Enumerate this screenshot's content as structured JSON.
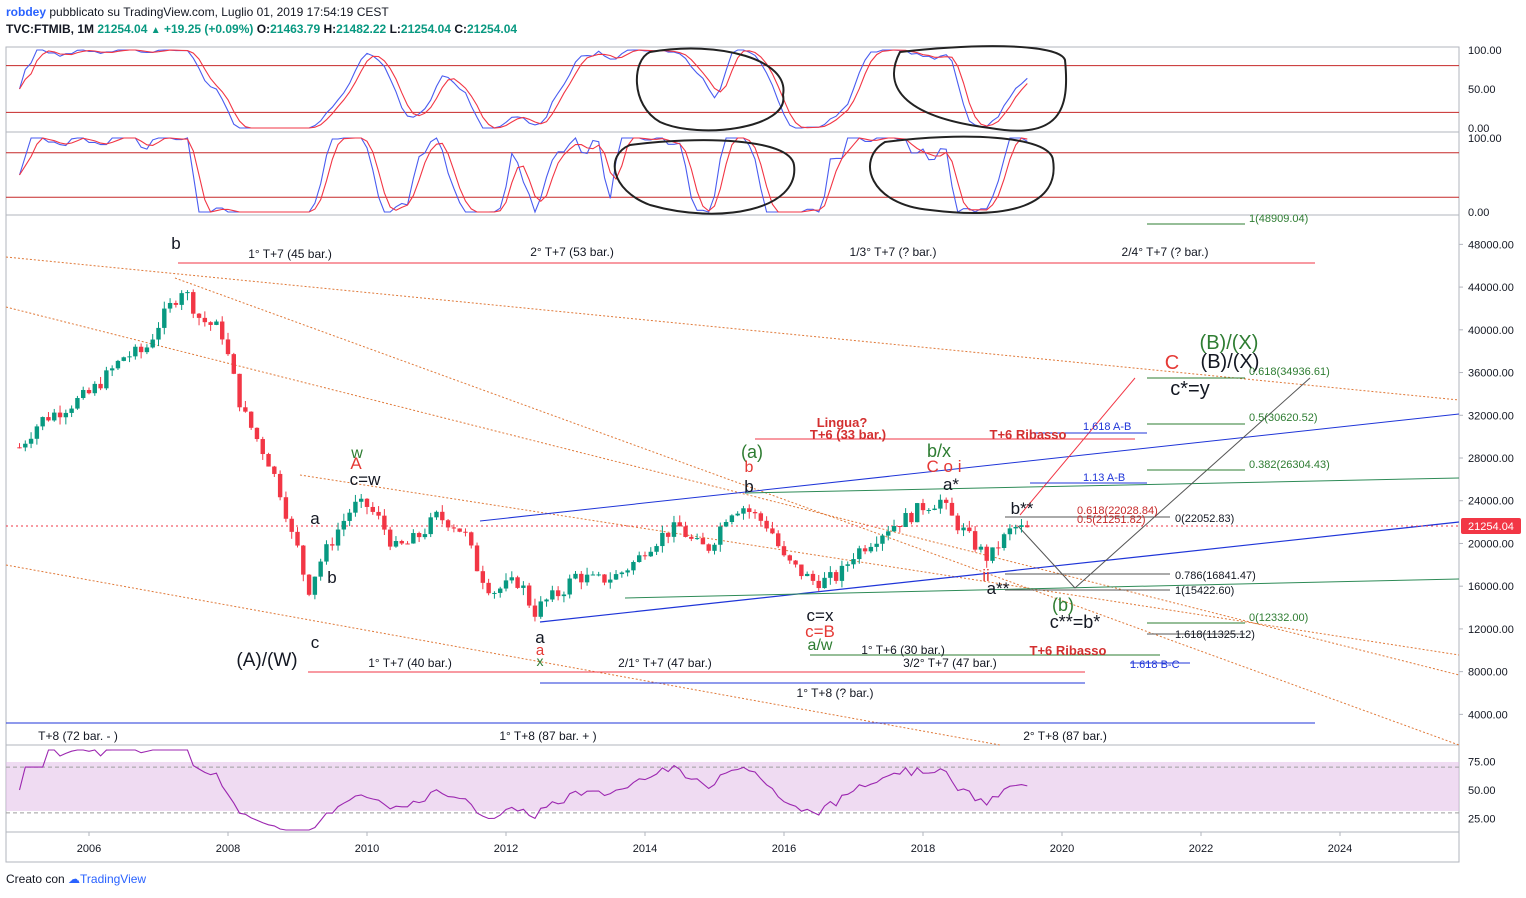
{
  "header": {
    "author": "robdey",
    "published_text": "pubblicato su TradingView.com, Luglio 01, 2019 17:54:19 CEST",
    "symbol": "TVC:FTMIB, 1M",
    "last": "21254.04",
    "change": "+19.25 (+0.09%)",
    "o_label": "O:",
    "o_value": "21463.79",
    "h_label": "H:",
    "h_value": "21482.22",
    "l_label": "L:",
    "l_value": "21254.04",
    "c_label": "C:",
    "c_value": "21254.04"
  },
  "footer": {
    "created_with": "Creato con",
    "brand": "TradingView"
  },
  "colors": {
    "up": "#089981",
    "down": "#f23645",
    "blue": "#2962ff",
    "osc_fast": "#4a5cf0",
    "osc_slow": "#f23645",
    "rsi": "#9c27b0",
    "fib_green": "#2e7d32"
  },
  "chart_data": [
    {
      "type": "line",
      "panel": "stochastic-1",
      "y_ticks": [
        "100.00",
        "50.00",
        "0.00"
      ],
      "ylim": [
        0,
        100
      ],
      "levels": [
        80,
        20
      ]
    },
    {
      "type": "line",
      "panel": "stochastic-2",
      "y_ticks": [
        "100.00",
        "0.00"
      ],
      "ylim": [
        0,
        100
      ],
      "levels": [
        80,
        20
      ]
    },
    {
      "type": "candlestick",
      "panel": "price",
      "ylim": [
        1600,
        50000
      ],
      "y_ticks": [
        "48000.00",
        "44000.00",
        "40000.00",
        "36000.00",
        "32000.00",
        "28000.00",
        "24000.00",
        "20000.00",
        "16000.00",
        "12000.00",
        "8000.00",
        "4000.00"
      ],
      "x_ticks": [
        "2006",
        "2008",
        "2010",
        "2012",
        "2014",
        "2016",
        "2018",
        "2020",
        "2022",
        "2024"
      ],
      "last_price": "21254.04",
      "path": [
        [
          2005.0,
          29000
        ],
        [
          2005.3,
          31500
        ],
        [
          2005.6,
          32500
        ],
        [
          2006.0,
          34000
        ],
        [
          2006.3,
          36000
        ],
        [
          2006.5,
          37500
        ],
        [
          2006.8,
          38000
        ],
        [
          2007.0,
          40500
        ],
        [
          2007.2,
          42500
        ],
        [
          2007.35,
          44000
        ],
        [
          2007.6,
          41000
        ],
        [
          2007.9,
          40000
        ],
        [
          2008.0,
          37500
        ],
        [
          2008.2,
          32500
        ],
        [
          2008.4,
          30000
        ],
        [
          2008.6,
          27500
        ],
        [
          2008.8,
          24000
        ],
        [
          2008.9,
          21000
        ],
        [
          2009.0,
          19500
        ],
        [
          2009.15,
          15500
        ],
        [
          2009.3,
          18000
        ],
        [
          2009.6,
          21500
        ],
        [
          2009.8,
          23500
        ],
        [
          2010.0,
          23500
        ],
        [
          2010.2,
          22000
        ],
        [
          2010.4,
          19500
        ],
        [
          2010.6,
          20000
        ],
        [
          2010.8,
          21000
        ],
        [
          2011.0,
          22500
        ],
        [
          2011.2,
          22000
        ],
        [
          2011.4,
          21000
        ],
        [
          2011.6,
          17500
        ],
        [
          2011.8,
          15500
        ],
        [
          2012.0,
          16000
        ],
        [
          2012.2,
          16500
        ],
        [
          2012.4,
          13500
        ],
        [
          2012.55,
          14500
        ],
        [
          2012.8,
          15500
        ],
        [
          2013.0,
          17000
        ],
        [
          2013.3,
          16500
        ],
        [
          2013.6,
          17000
        ],
        [
          2013.9,
          18500
        ],
        [
          2014.0,
          19500
        ],
        [
          2014.3,
          21000
        ],
        [
          2014.5,
          21500
        ],
        [
          2014.7,
          20000
        ],
        [
          2014.9,
          19500
        ],
        [
          2015.0,
          20500
        ],
        [
          2015.2,
          23000
        ],
        [
          2015.4,
          23500
        ],
        [
          2015.6,
          22500
        ],
        [
          2015.8,
          21500
        ],
        [
          2016.0,
          18500
        ],
        [
          2016.2,
          17500
        ],
        [
          2016.4,
          16500
        ],
        [
          2016.6,
          16500
        ],
        [
          2016.8,
          17000
        ],
        [
          2017.0,
          19000
        ],
        [
          2017.3,
          20500
        ],
        [
          2017.5,
          21500
        ],
        [
          2017.8,
          22500
        ],
        [
          2018.0,
          23500
        ],
        [
          2018.25,
          24000
        ],
        [
          2018.4,
          22500
        ],
        [
          2018.6,
          21000
        ],
        [
          2018.8,
          19500
        ],
        [
          2018.95,
          18500
        ],
        [
          2019.1,
          20000
        ],
        [
          2019.3,
          21500
        ],
        [
          2019.5,
          21254
        ]
      ],
      "labels": {
        "b_top": "b",
        "A": "A",
        "w_green": "w",
        "cw": "c=w",
        "a_left": "a",
        "b_left": "b",
        "c_low": "c",
        "AW": "(A)/(W)",
        "a_mid": "a",
        "a_red": "a",
        "x_green": "x",
        "a_paren": "(a)",
        "b_red": "b",
        "b_black": "b",
        "bx": "b/x",
        "C_oi": "C o i",
        "a_star": "a*",
        "b_2star": "b**",
        "ii": "ii",
        "a_2star": "a**",
        "b_paren": "(b)",
        "c2star": "c**=b*",
        "cx": "c=x",
        "cB": "c=B",
        "aw2": "a/w",
        "C_big": "C",
        "BX_black": "(B)/(X)",
        "BX_green": "(B)/(X)",
        "cy": "c*=y",
        "lingua": "Lingua?",
        "t6_33": "T+6 (33 bar.)",
        "t6_rib1": "T+6 Ribasso",
        "t6_rib2": "T+6 Ribasso",
        "cyc_1t7_45": "1° T+7 (45 bar.)",
        "cyc_2t7_53": "2° T+7 (53 bar.)",
        "cyc_13t7": "1/3° T+7 (? bar.)",
        "cyc_24t7": "2/4° T+7 (? bar.)",
        "cyc_1t7_40": "1° T+7 (40 bar.)",
        "cyc_21t7_47": "2/1° T+7 (47 bar.)",
        "cyc_32t7_47": "3/2° T+7 (47 bar.)",
        "cyc_1t6_30": "1° T+6 (30 bar.)",
        "cyc_1t8": "1° T+8 (? bar.)",
        "cyc_t8_72": "T+8 (72 bar. - )",
        "cyc_1t8_87": "1° T+8 (87 bar. + )",
        "cyc_2t8_87": "2° T+8 (87 bar.)"
      },
      "fib_labels": {
        "f1": "1(48909.04)",
        "f0618u": "0.618(34936.61)",
        "f05": "0.5(30620.52)",
        "f0382": "0.382(26304.43)",
        "f1618ab": "1.618 A-B",
        "f113ab": "1.13 A-B",
        "r0618": "0.618(22028.84)",
        "r05": "0.5(21251.82)",
        "r0": "0(22052.83)",
        "r0786": "0.786(16841.47)",
        "r1": "1(15422.60)",
        "f0": "0(12332.00)",
        "f1618": "1.618(11325.12)",
        "f1618bc": "1.618 B-C"
      }
    },
    {
      "type": "line",
      "panel": "rsi",
      "y_ticks": [
        "75.00",
        "50.00",
        "25.00"
      ],
      "ylim": [
        15,
        85
      ],
      "levels": [
        70,
        30
      ]
    }
  ]
}
